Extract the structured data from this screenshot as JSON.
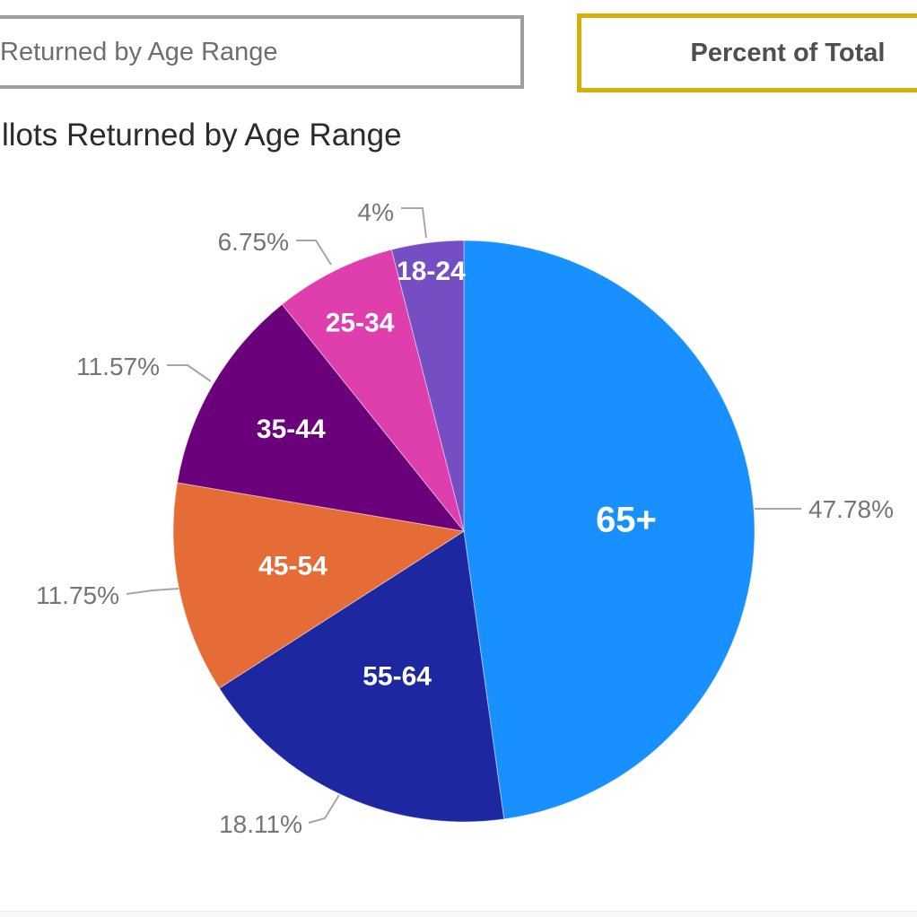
{
  "toolbar": {
    "left_button_label": "Returned by Age Range",
    "right_button_label": "Percent of Total",
    "left_button_border_color": "#9E9E9E",
    "right_button_border_color": "#D4B106"
  },
  "chart_data": {
    "type": "pie",
    "title": "llots Returned by Age Range",
    "categories": [
      "65+",
      "55-64",
      "45-54",
      "35-44",
      "25-34",
      "18-24"
    ],
    "values": [
      47.78,
      18.11,
      11.75,
      11.57,
      6.75,
      4
    ],
    "labels": [
      "47.78%",
      "18.11%",
      "11.75%",
      "11.57%",
      "6.75%",
      "4%"
    ],
    "colors": [
      "#1890FF",
      "#1C27A0",
      "#E66C37",
      "#6B007B",
      "#DE3FAC",
      "#744EC2"
    ],
    "slice_label_color": "#FFFFFF",
    "callout_label_color": "#757575",
    "callout_line_color": "#A6A6A6",
    "start_angle": "12 o'clock",
    "direction": "clockwise",
    "legend": "none"
  }
}
